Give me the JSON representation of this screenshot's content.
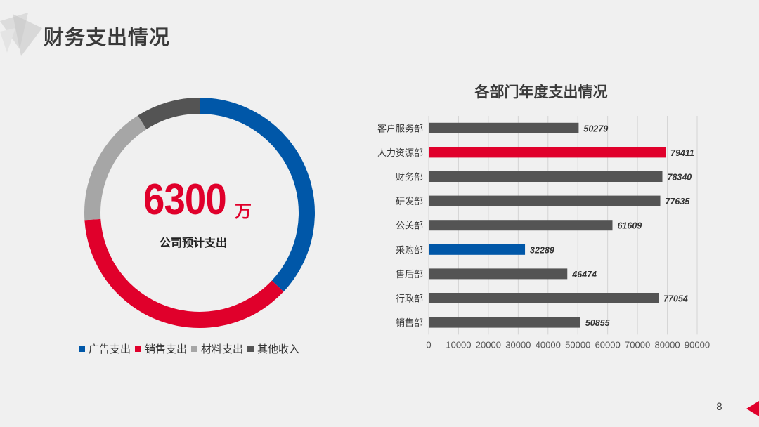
{
  "page": {
    "title": "财务支出情况",
    "page_number": "8"
  },
  "colors": {
    "blue": "#0057a8",
    "red": "#e0002b",
    "lightgray": "#a6a6a6",
    "darkgray": "#545454"
  },
  "chart_data": [
    {
      "type": "pie",
      "center_value": "6300",
      "center_unit": "万",
      "center_label": "公司预计支出",
      "slices": [
        {
          "name": "广告支出",
          "value": 0.37,
          "color": "#0057a8"
        },
        {
          "name": "销售支出",
          "value": 0.37,
          "color": "#e0002b"
        },
        {
          "name": "材料支出",
          "value": 0.17,
          "color": "#a6a6a6"
        },
        {
          "name": "其他收入",
          "value": 0.09,
          "color": "#545454"
        }
      ]
    },
    {
      "type": "bar",
      "orientation": "horizontal",
      "title": "各部门年度支出情况",
      "categories": [
        "客户服务部",
        "人力资源部",
        "财务部",
        "研发部",
        "公关部",
        "采购部",
        "售后部",
        "行政部",
        "销售部"
      ],
      "values": [
        50279,
        79411,
        78340,
        77635,
        61609,
        32289,
        46474,
        77054,
        50855
      ],
      "bar_colors": [
        "#545454",
        "#e0002b",
        "#545454",
        "#545454",
        "#545454",
        "#0057a8",
        "#545454",
        "#545454",
        "#545454"
      ],
      "xlim": [
        0,
        90000
      ],
      "xticks": [
        0,
        10000,
        20000,
        30000,
        40000,
        50000,
        60000,
        70000,
        80000,
        90000
      ],
      "grid": true
    }
  ]
}
